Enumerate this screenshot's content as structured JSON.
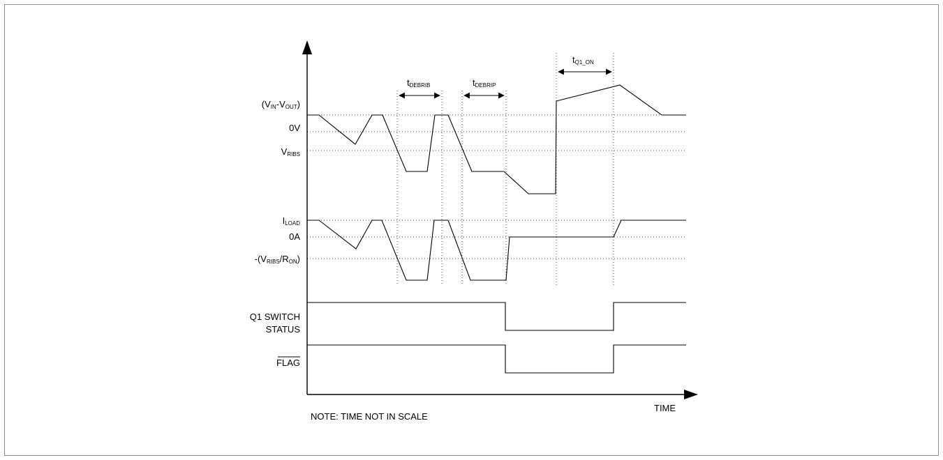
{
  "labels": {
    "vin_vout": {
      "prefix": "(V",
      "sub1": "IN",
      "mid": "-V",
      "sub2": "OUT",
      "suffix": ")"
    },
    "zero_v": "0V",
    "vribs": {
      "main": "V",
      "sub": "RIBS"
    },
    "iload": {
      "main": "I",
      "sub": "LOAD"
    },
    "zero_a": "0A",
    "neg_ratio": {
      "p1": "-(V",
      "sub1": "RIBS",
      "p2": "/R",
      "sub2": "ON",
      "p3": ")"
    },
    "q1_line1": "Q1 SWITCH",
    "q1_line2": "STATUS",
    "flag": "FLAG",
    "time": "TIME",
    "note": "NOTE: TIME NOT IN SCALE"
  },
  "timings": {
    "debrib": {
      "main": "t",
      "sub": "DEBRIB"
    },
    "debrip": {
      "main": "t",
      "sub": "DEBRIP"
    },
    "q1_on": {
      "main": "t",
      "sub": "Q1_ON"
    }
  }
}
